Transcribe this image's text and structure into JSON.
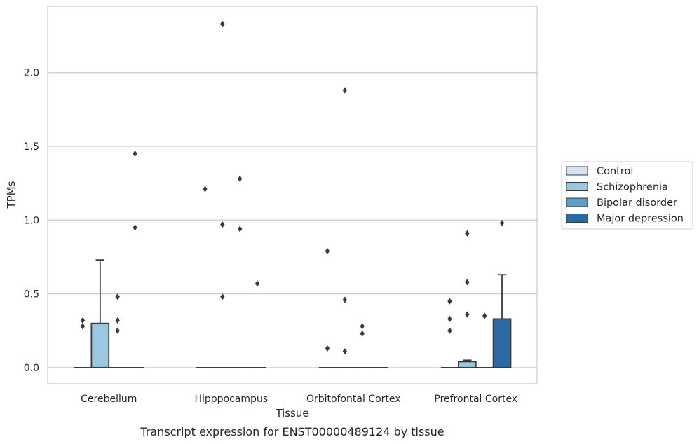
{
  "caption": "Transcript expression for ENST00000489124 by tissue",
  "chart_data": {
    "type": "boxplot",
    "xlabel": "Tissue",
    "ylabel": "TPMs",
    "ylim": [
      -0.11,
      2.45
    ],
    "yticks": [
      0.0,
      0.5,
      1.0,
      1.5,
      2.0
    ],
    "ytick_labels": [
      "0.0",
      "0.5",
      "1.0",
      "1.5",
      "2.0"
    ],
    "grid": "horizontal",
    "legend_position": "right",
    "categories": [
      "Cerebellum",
      "Hipppocampus",
      "Orbitofontal Cortex",
      "Prefrontal Cortex"
    ],
    "series": [
      {
        "name": "Control",
        "color": "#d4e3f1",
        "boxes": [
          {
            "min": 0,
            "q1": 0,
            "median": 0,
            "q3": 0,
            "max": 0,
            "outliers": [
              0.28,
              0.32
            ]
          },
          {
            "min": 0,
            "q1": 0,
            "median": 0,
            "q3": 0,
            "max": 0,
            "outliers": [
              1.21
            ]
          },
          {
            "min": 0,
            "q1": 0,
            "median": 0,
            "q3": 0,
            "max": 0,
            "outliers": [
              0.13,
              0.79
            ]
          },
          {
            "min": 0,
            "q1": 0,
            "median": 0,
            "q3": 0,
            "max": 0,
            "outliers": [
              0.25,
              0.33,
              0.45
            ]
          }
        ]
      },
      {
        "name": "Schizophrenia",
        "color": "#9ac8e0",
        "boxes": [
          {
            "min": 0,
            "q1": 0,
            "median": 0,
            "q3": 0.3,
            "max": 0.73,
            "outliers": []
          },
          {
            "min": 0,
            "q1": 0,
            "median": 0,
            "q3": 0,
            "max": 0,
            "outliers": [
              0.48,
              0.97,
              2.33
            ]
          },
          {
            "min": 0,
            "q1": 0,
            "median": 0,
            "q3": 0,
            "max": 0,
            "outliers": [
              0.11,
              0.46,
              1.88
            ]
          },
          {
            "min": 0,
            "q1": 0,
            "median": 0,
            "q3": 0.04,
            "max": 0.05,
            "outliers": [
              0.36,
              0.58,
              0.91
            ]
          }
        ]
      },
      {
        "name": "Bipolar disorder",
        "color": "#5b9cc9",
        "boxes": [
          {
            "min": 0,
            "q1": 0,
            "median": 0,
            "q3": 0,
            "max": 0,
            "outliers": [
              0.25,
              0.32,
              0.48
            ]
          },
          {
            "min": 0,
            "q1": 0,
            "median": 0,
            "q3": 0,
            "max": 0,
            "outliers": [
              0.94,
              1.28
            ]
          },
          {
            "min": 0,
            "q1": 0,
            "median": 0,
            "q3": 0,
            "max": 0,
            "outliers": [
              0.23,
              0.28
            ]
          },
          {
            "min": 0,
            "q1": 0,
            "median": 0,
            "q3": 0,
            "max": 0,
            "outliers": [
              0.35
            ]
          }
        ]
      },
      {
        "name": "Major depression",
        "color": "#2b6aa7",
        "boxes": [
          {
            "min": 0,
            "q1": 0,
            "median": 0,
            "q3": 0,
            "max": 0,
            "outliers": [
              0.95,
              1.45
            ]
          },
          {
            "min": 0,
            "q1": 0,
            "median": 0,
            "q3": 0,
            "max": 0,
            "outliers": [
              0.57
            ]
          },
          {
            "min": 0,
            "q1": 0,
            "median": 0,
            "q3": 0,
            "max": 0,
            "outliers": []
          },
          {
            "min": 0,
            "q1": 0,
            "median": 0,
            "q3": 0.33,
            "max": 0.63,
            "outliers": [
              0.98
            ]
          }
        ]
      }
    ]
  }
}
